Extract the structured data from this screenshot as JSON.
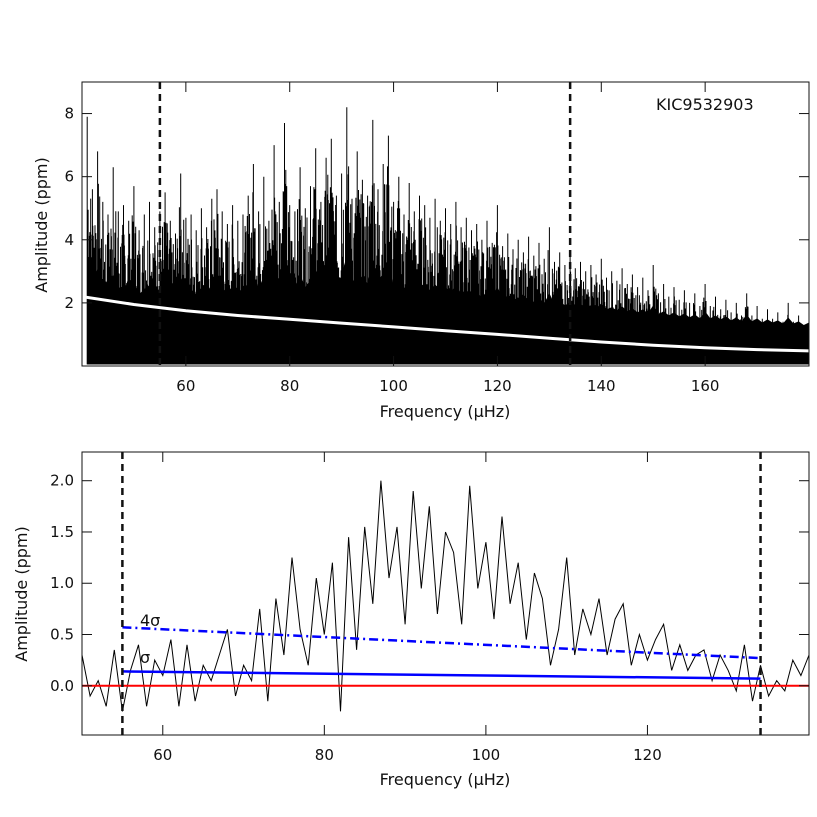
{
  "chart_data": [
    {
      "type": "line",
      "panel": "top",
      "title": "",
      "annotation": "KIC9532903",
      "xlabel": "Frequency (μHz)",
      "ylabel": "Amplitude (ppm)",
      "xlim": [
        40,
        180
      ],
      "ylim": [
        0,
        9
      ],
      "xticks": [
        60,
        80,
        100,
        120,
        140,
        160
      ],
      "yticks": [
        2,
        4,
        6,
        8
      ],
      "vlines": [
        55,
        134
      ],
      "series": [
        {
          "style": "spectrum",
          "color": "#000000",
          "x": [
            41,
            42,
            43,
            44,
            45,
            46,
            47,
            48,
            49,
            50,
            51,
            52,
            53,
            54,
            55,
            56,
            57,
            58,
            59,
            60,
            61,
            62,
            63,
            64,
            65,
            66,
            67,
            68,
            69,
            70,
            71,
            72,
            73,
            74,
            75,
            76,
            77,
            78,
            79,
            80,
            81,
            82,
            83,
            84,
            85,
            86,
            87,
            88,
            89,
            90,
            91,
            92,
            93,
            94,
            95,
            96,
            97,
            98,
            99,
            100,
            101,
            102,
            103,
            104,
            105,
            106,
            107,
            108,
            109,
            110,
            111,
            112,
            113,
            114,
            115,
            116,
            117,
            118,
            119,
            120,
            121,
            122,
            123,
            124,
            125,
            126,
            127,
            128,
            129,
            130,
            131,
            132,
            133,
            134,
            135,
            136,
            137,
            138,
            139,
            140,
            141,
            142,
            143,
            144,
            145,
            146,
            147,
            148,
            149,
            150,
            151,
            152,
            153,
            154,
            155,
            156,
            157,
            158,
            159,
            160,
            161,
            162,
            163,
            164,
            165,
            166,
            167,
            168,
            169,
            170,
            171,
            172,
            173,
            174,
            175,
            176,
            177,
            178,
            179,
            180
          ],
          "y": [
            7.9,
            5.6,
            6.8,
            5.2,
            4.8,
            6.3,
            4.9,
            5.1,
            4.6,
            5.7,
            4.3,
            4.8,
            5.2,
            4.4,
            4.9,
            5.5,
            4.6,
            4.2,
            6.1,
            4.7,
            4.8,
            4.3,
            5.0,
            4.4,
            5.3,
            5.6,
            4.9,
            4.5,
            5.1,
            4.6,
            4.8,
            5.4,
            6.4,
            4.9,
            6.0,
            4.6,
            7.0,
            5.2,
            7.7,
            5.1,
            4.9,
            6.3,
            5.0,
            5.7,
            6.9,
            5.2,
            6.6,
            7.2,
            5.4,
            6.1,
            8.2,
            5.3,
            6.8,
            5.9,
            5.4,
            7.8,
            5.6,
            6.4,
            7.3,
            5.2,
            6.0,
            4.8,
            5.8,
            4.9,
            5.4,
            5.1,
            4.7,
            5.3,
            4.6,
            5.0,
            4.5,
            5.2,
            4.4,
            4.7,
            4.3,
            4.5,
            4.0,
            4.6,
            3.9,
            5.1,
            3.8,
            4.2,
            3.7,
            4.0,
            3.6,
            4.1,
            3.5,
            3.9,
            3.4,
            4.4,
            3.3,
            3.6,
            3.2,
            3.5,
            3.1,
            3.3,
            3.0,
            3.2,
            2.9,
            3.4,
            2.8,
            3.0,
            2.7,
            3.1,
            2.6,
            2.9,
            2.5,
            2.8,
            2.4,
            3.2,
            2.3,
            2.6,
            2.2,
            2.5,
            2.1,
            2.4,
            2.0,
            2.3,
            1.9,
            2.6,
            1.9,
            2.2,
            1.8,
            2.1,
            1.7,
            2.0,
            1.6,
            2.3,
            1.6,
            1.9,
            1.5,
            1.8,
            1.5,
            1.7,
            1.4,
            2.0,
            1.4,
            1.6,
            1.3,
            1.5
          ]
        },
        {
          "style": "background-fit",
          "color": "#ffffff",
          "x": [
            40,
            50,
            60,
            70,
            80,
            90,
            100,
            110,
            120,
            130,
            140,
            150,
            160,
            170,
            180
          ],
          "y": [
            2.2,
            1.95,
            1.75,
            1.6,
            1.48,
            1.36,
            1.24,
            1.12,
            1.0,
            0.88,
            0.76,
            0.66,
            0.58,
            0.52,
            0.48
          ]
        }
      ]
    },
    {
      "type": "line",
      "panel": "bottom",
      "title": "",
      "xlabel": "Frequency (μHz)",
      "ylabel": "Amplitude (ppm)",
      "xlim": [
        50,
        140
      ],
      "ylim": [
        -0.48,
        2.28
      ],
      "xticks": [
        60,
        80,
        100,
        120
      ],
      "yticks": [
        0.0,
        0.5,
        1.0,
        1.5,
        2.0
      ],
      "ytick_labels": [
        "0.0",
        "0.5",
        "1.0",
        "1.5",
        "2.0"
      ],
      "vlines": [
        55,
        134
      ],
      "annotations": [
        "4σ",
        "σ"
      ],
      "series": [
        {
          "style": "smoothed-spectrum",
          "color": "#000000",
          "x": [
            50,
            51,
            52,
            53,
            54,
            55,
            56,
            57,
            58,
            59,
            60,
            61,
            62,
            63,
            64,
            65,
            66,
            67,
            68,
            69,
            70,
            71,
            72,
            73,
            74,
            75,
            76,
            77,
            78,
            79,
            80,
            81,
            82,
            83,
            84,
            85,
            86,
            87,
            88,
            89,
            90,
            91,
            92,
            93,
            94,
            95,
            96,
            97,
            98,
            99,
            100,
            101,
            102,
            103,
            104,
            105,
            106,
            107,
            108,
            109,
            110,
            111,
            112,
            113,
            114,
            115,
            116,
            117,
            118,
            119,
            120,
            121,
            122,
            123,
            124,
            125,
            126,
            127,
            128,
            129,
            130,
            131,
            132,
            133,
            134,
            135,
            136,
            137,
            138,
            139,
            140
          ],
          "y": [
            0.3,
            -0.1,
            0.05,
            -0.2,
            0.35,
            -0.25,
            0.15,
            0.4,
            -0.2,
            0.25,
            0.1,
            0.45,
            -0.2,
            0.4,
            -0.15,
            0.2,
            0.05,
            0.3,
            0.55,
            -0.1,
            0.2,
            0.05,
            0.75,
            -0.15,
            0.85,
            0.3,
            1.25,
            0.55,
            0.2,
            1.05,
            0.5,
            1.2,
            -0.25,
            1.45,
            0.35,
            1.55,
            0.8,
            2.0,
            1.05,
            1.55,
            0.6,
            1.9,
            0.95,
            1.75,
            0.7,
            1.5,
            1.3,
            0.6,
            1.95,
            0.95,
            1.4,
            0.65,
            1.65,
            0.8,
            1.2,
            0.45,
            1.1,
            0.85,
            0.2,
            0.55,
            1.25,
            0.3,
            0.75,
            0.5,
            0.85,
            0.3,
            0.65,
            0.8,
            0.2,
            0.5,
            0.25,
            0.45,
            0.6,
            0.15,
            0.4,
            0.15,
            0.3,
            0.35,
            0.05,
            0.3,
            0.15,
            -0.05,
            0.4,
            -0.15,
            0.2,
            -0.1,
            0.05,
            -0.05,
            0.25,
            0.1,
            0.3
          ]
        },
        {
          "style": "zero-line",
          "color": "#ff0000",
          "x": [
            50,
            140
          ],
          "y": [
            0.0,
            0.0
          ]
        },
        {
          "style": "sigma-line",
          "color": "#0000ff",
          "x": [
            55,
            134
          ],
          "y": [
            0.14,
            0.07
          ]
        },
        {
          "style": "four-sigma-line",
          "color": "#0000ff",
          "x": [
            55,
            134
          ],
          "y": [
            0.57,
            0.27
          ]
        }
      ]
    }
  ]
}
